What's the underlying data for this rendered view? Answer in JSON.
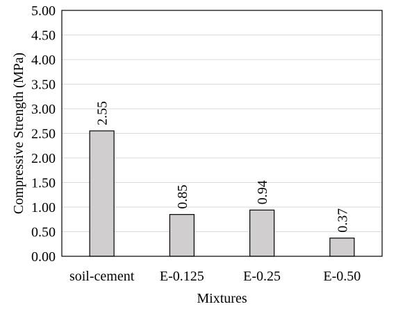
{
  "chart_data": {
    "type": "bar",
    "categories": [
      "soil-cement",
      "E-0.125",
      "E-0.25",
      "E-0.50"
    ],
    "values": [
      2.55,
      0.85,
      0.94,
      0.37
    ],
    "data_labels": [
      "2.55",
      "0.85",
      "0.94",
      "0.37"
    ],
    "xlabel": "Mixtures",
    "ylabel": "Compressive  Strength (MPa)",
    "ylim": [
      0,
      5
    ],
    "yticks": [
      "0.00",
      "0.50",
      "1.00",
      "1.50",
      "2.00",
      "2.50",
      "3.00",
      "3.50",
      "4.00",
      "4.50",
      "5.00"
    ],
    "grid": true,
    "legend": "none",
    "data_label_orientation": "vertical",
    "colors": {
      "bar_fill": "#d0cece",
      "bar_stroke": "#000000",
      "grid": "#d9d9d9",
      "frame": "#000000"
    }
  }
}
